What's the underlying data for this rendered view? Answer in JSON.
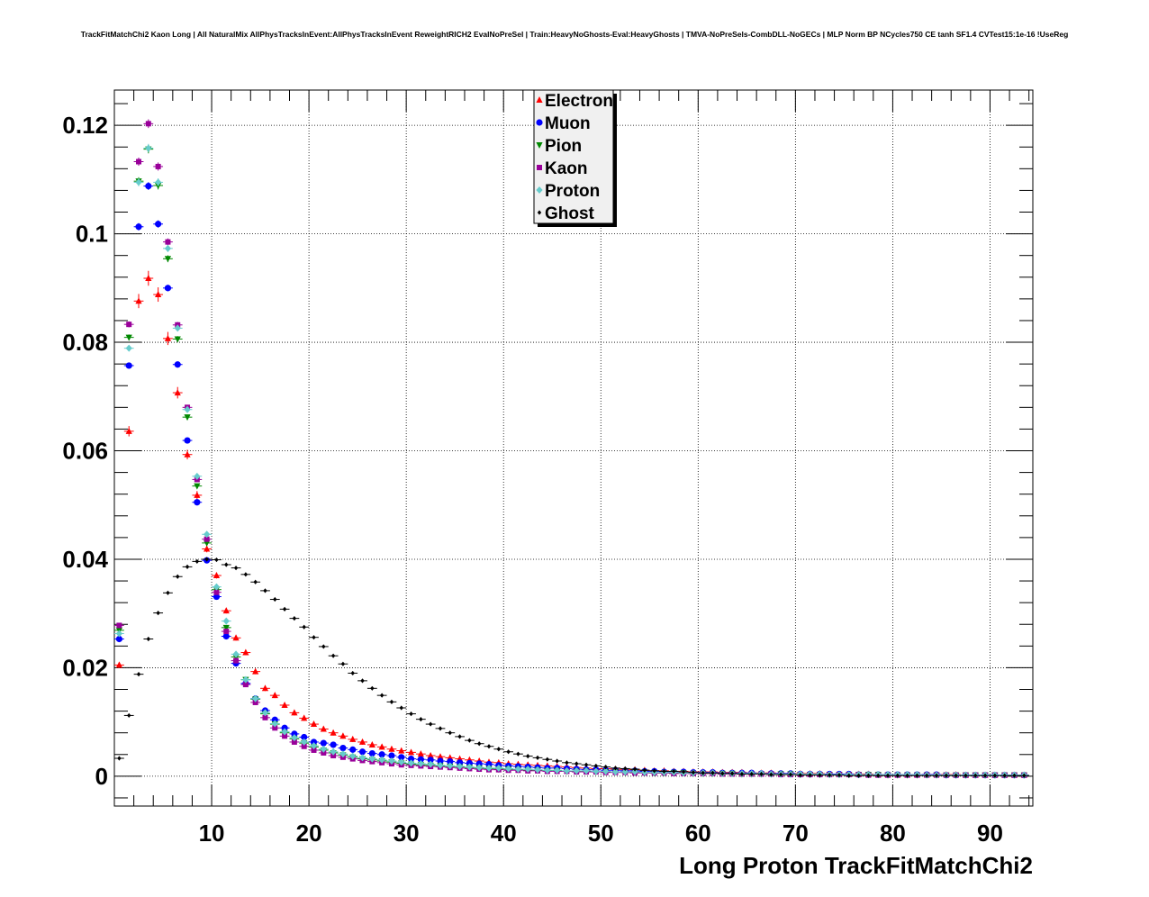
{
  "title": "TrackFitMatchChi2 Kaon Long | All NaturalMix AllPhysTracksInEvent:AllPhysTracksInEvent ReweightRICH2 EvalNoPreSel | Train:HeavyNoGhosts-Eval:HeavyGhosts | TMVA-NoPreSels-CombDLL-NoGECs | MLP Norm BP NCycles750 CE tanh SF1.4 CVTest15:1e-16 !UseReg",
  "chart_data": {
    "type": "scatter",
    "title": "TrackFitMatchChi2 Kaon Long | All NaturalMix AllPhysTracksInEvent:AllPhysTracksInEvent ReweightRICH2 EvalNoPreSel | Train:HeavyNoGhosts-Eval:HeavyGhosts | TMVA-NoPreSels-CombDLL-NoGECs | MLP Norm BP NCycles750 CE tanh SF1.4 CVTest15:1e-16 !UseReg",
    "xlabel": "Long Proton TrackFitMatchChi2",
    "ylabel": "",
    "xlim": [
      0,
      94.4
    ],
    "ylim": [
      -0.0055,
      0.1265
    ],
    "x_ticks": [
      10,
      20,
      30,
      40,
      50,
      60,
      70,
      80,
      90
    ],
    "x_tick_labels": [
      "10",
      "20",
      "30",
      "40",
      "50",
      "60",
      "70",
      "80",
      "90"
    ],
    "y_ticks": [
      0,
      0.02,
      0.04,
      0.06,
      0.08,
      0.1,
      0.12
    ],
    "y_tick_labels": [
      "0",
      "0.02",
      "0.04",
      "0.06",
      "0.08",
      "0.1",
      "0.12"
    ],
    "grid": true,
    "legend_position": "top-center",
    "bin_centers": [
      0.5,
      1.5,
      2.5,
      3.5,
      4.5,
      5.5,
      6.5,
      7.5,
      8.5,
      9.5,
      10.5,
      11.5,
      12.5,
      13.5,
      14.5,
      15.5,
      16.5,
      17.5,
      18.5,
      19.5,
      20.5,
      21.5,
      22.5,
      23.5,
      24.5,
      25.5,
      26.5,
      27.5,
      28.5,
      29.5,
      30.5,
      31.5,
      32.5,
      33.5,
      34.5,
      35.5,
      36.5,
      37.5,
      38.5,
      39.5,
      40.5,
      41.5,
      42.5,
      43.5,
      44.5,
      45.5,
      46.5,
      47.5,
      48.5,
      49.5,
      50.5,
      51.5,
      52.5,
      53.5,
      54.5,
      55.5,
      56.5,
      57.5,
      58.5,
      59.5,
      60.5,
      61.5,
      62.5,
      63.5,
      64.5,
      65.5,
      66.5,
      67.5,
      68.5,
      69.5,
      70.5,
      71.5,
      72.5,
      73.5,
      74.5,
      75.5,
      76.5,
      77.5,
      78.5,
      79.5,
      80.5,
      81.5,
      82.5,
      83.5,
      84.5,
      85.5,
      86.5,
      87.5,
      88.5,
      89.5,
      90.5,
      91.5,
      92.5,
      93.5
    ],
    "series": [
      {
        "name": "Electron",
        "marker": "triangle-up",
        "color": "#ff0000",
        "values": [
          0.0205,
          0.0636,
          0.0876,
          0.0918,
          0.0888,
          0.0807,
          0.0707,
          0.0593,
          0.0518,
          0.0419,
          0.037,
          0.0305,
          0.0255,
          0.0228,
          0.0193,
          0.0162,
          0.0149,
          0.0131,
          0.0117,
          0.0107,
          0.0096,
          0.0087,
          0.008,
          0.0074,
          0.0068,
          0.0063,
          0.0058,
          0.0054,
          0.005,
          0.0047,
          0.0044,
          0.0041,
          0.0038,
          0.0036,
          0.0034,
          0.0032,
          0.003,
          0.0028,
          0.0026,
          0.0025,
          0.0023,
          0.0022,
          0.0021,
          0.002,
          0.0019,
          0.0018,
          0.0017,
          0.0016,
          0.0015,
          0.0014,
          0.0014,
          0.0013,
          0.0012,
          0.0012,
          0.0011,
          0.001,
          0.001,
          0.0009,
          0.0009,
          0.0008,
          0.0008,
          0.0008,
          0.0007,
          0.0007,
          0.0007,
          0.0006,
          0.0006,
          0.0006,
          0.0005,
          0.0005,
          0.0005,
          0.0005,
          0.0005,
          0.0004,
          0.0004,
          0.0004,
          0.0004,
          0.0004,
          0.0003,
          0.0003,
          0.0003,
          0.0003,
          0.0003,
          0.0003,
          0.0003,
          0.0003,
          0.0003,
          0.0002,
          0.0002,
          0.0002,
          0.0002,
          0.0002,
          0.0002,
          0.0002
        ]
      },
      {
        "name": "Muon",
        "marker": "circle",
        "color": "#0000ff",
        "values": [
          0.0253,
          0.0757,
          0.1013,
          0.1088,
          0.1018,
          0.09,
          0.0759,
          0.0619,
          0.0505,
          0.0398,
          0.0331,
          0.0258,
          0.0208,
          0.0171,
          0.0143,
          0.0121,
          0.0104,
          0.0089,
          0.0078,
          0.0072,
          0.0063,
          0.0061,
          0.0058,
          0.0052,
          0.0049,
          0.0045,
          0.0042,
          0.004,
          0.0038,
          0.0035,
          0.0032,
          0.0031,
          0.003,
          0.0028,
          0.0027,
          0.0025,
          0.0024,
          0.0023,
          0.0022,
          0.002,
          0.0019,
          0.0018,
          0.0017,
          0.0016,
          0.0015,
          0.0015,
          0.0014,
          0.0013,
          0.0012,
          0.0012,
          0.0011,
          0.0011,
          0.001,
          0.001,
          0.0009,
          0.0009,
          0.0008,
          0.0008,
          0.0008,
          0.0007,
          0.0007,
          0.0007,
          0.0006,
          0.0006,
          0.0006,
          0.0006,
          0.0005,
          0.0005,
          0.0005,
          0.0005,
          0.0004,
          0.0004,
          0.0004,
          0.0004,
          0.0004,
          0.0004,
          0.0003,
          0.0003,
          0.0003,
          0.0003,
          0.0003,
          0.0003,
          0.0003,
          0.0003,
          0.0003,
          0.0002,
          0.0002,
          0.0002,
          0.0002,
          0.0002,
          0.0002,
          0.0002,
          0.0002,
          0.0002
        ]
      },
      {
        "name": "Pion",
        "marker": "triangle-down",
        "color": "#008800",
        "values": [
          0.0269,
          0.0809,
          0.1097,
          0.1156,
          0.1089,
          0.0954,
          0.0806,
          0.0662,
          0.0535,
          0.043,
          0.0344,
          0.0274,
          0.022,
          0.0178,
          0.0142,
          0.0115,
          0.0096,
          0.008,
          0.0069,
          0.0061,
          0.0054,
          0.0048,
          0.0043,
          0.0039,
          0.0035,
          0.0032,
          0.003,
          0.0028,
          0.0026,
          0.0024,
          0.0022,
          0.0021,
          0.002,
          0.0019,
          0.0018,
          0.0017,
          0.0016,
          0.0015,
          0.0014,
          0.0013,
          0.0013,
          0.0012,
          0.0011,
          0.0011,
          0.001,
          0.001,
          0.0009,
          0.0009,
          0.0009,
          0.0008,
          0.0008,
          0.0008,
          0.0007,
          0.0007,
          0.0007,
          0.0006,
          0.0006,
          0.0006,
          0.0006,
          0.0005,
          0.0005,
          0.0005,
          0.0005,
          0.0005,
          0.0004,
          0.0004,
          0.0004,
          0.0004,
          0.0004,
          0.0004,
          0.0003,
          0.0003,
          0.0003,
          0.0003,
          0.0003,
          0.0003,
          0.0003,
          0.0003,
          0.0003,
          0.0002,
          0.0002,
          0.0002,
          0.0002,
          0.0002,
          0.0002,
          0.0002,
          0.0002,
          0.0002,
          0.0002,
          0.0002,
          0.0002,
          0.0002,
          0.0002,
          0.0002
        ]
      },
      {
        "name": "Kaon",
        "marker": "square",
        "color": "#990099",
        "values": [
          0.0278,
          0.0833,
          0.1133,
          0.1203,
          0.1124,
          0.0985,
          0.0832,
          0.068,
          0.0547,
          0.0437,
          0.0339,
          0.0267,
          0.0213,
          0.0169,
          0.0136,
          0.0108,
          0.0089,
          0.0074,
          0.0063,
          0.0055,
          0.0048,
          0.0043,
          0.0038,
          0.0035,
          0.0032,
          0.0029,
          0.0027,
          0.0025,
          0.0023,
          0.0021,
          0.002,
          0.0019,
          0.0018,
          0.0017,
          0.0016,
          0.0015,
          0.0014,
          0.0013,
          0.0012,
          0.0012,
          0.0011,
          0.0011,
          0.001,
          0.001,
          0.0009,
          0.0009,
          0.0009,
          0.0008,
          0.0008,
          0.0008,
          0.0007,
          0.0007,
          0.0007,
          0.0006,
          0.0006,
          0.0006,
          0.0006,
          0.0005,
          0.0005,
          0.0005,
          0.0005,
          0.0005,
          0.0004,
          0.0004,
          0.0004,
          0.0004,
          0.0004,
          0.0004,
          0.0003,
          0.0003,
          0.0003,
          0.0003,
          0.0003,
          0.0003,
          0.0003,
          0.0003,
          0.0003,
          0.0002,
          0.0002,
          0.0002,
          0.0002,
          0.0002,
          0.0002,
          0.0002,
          0.0002,
          0.0002,
          0.0002,
          0.0002,
          0.0002,
          0.0002,
          0.0002,
          0.0002,
          0.0002,
          0.0002
        ]
      },
      {
        "name": "Proton",
        "marker": "diamond",
        "color": "#66cccc",
        "values": [
          0.0263,
          0.0789,
          0.1095,
          0.1158,
          0.1095,
          0.0973,
          0.0826,
          0.0676,
          0.0553,
          0.0446,
          0.0349,
          0.0286,
          0.0225,
          0.0178,
          0.0143,
          0.0117,
          0.0097,
          0.0082,
          0.0071,
          0.0063,
          0.0056,
          0.005,
          0.0045,
          0.0041,
          0.0037,
          0.0034,
          0.0032,
          0.003,
          0.0028,
          0.0026,
          0.0024,
          0.0023,
          0.0022,
          0.002,
          0.0019,
          0.0018,
          0.0017,
          0.0016,
          0.0015,
          0.0015,
          0.0014,
          0.0013,
          0.0013,
          0.0012,
          0.0011,
          0.0011,
          0.001,
          0.001,
          0.001,
          0.0009,
          0.0009,
          0.0008,
          0.0008,
          0.0008,
          0.0007,
          0.0007,
          0.0007,
          0.0007,
          0.0006,
          0.0006,
          0.0006,
          0.0006,
          0.0005,
          0.0005,
          0.0005,
          0.0005,
          0.0005,
          0.0004,
          0.0004,
          0.0004,
          0.0004,
          0.0004,
          0.0004,
          0.0003,
          0.0003,
          0.0003,
          0.0003,
          0.0003,
          0.0003,
          0.0003,
          0.0003,
          0.0003,
          0.0003,
          0.0002,
          0.0002,
          0.0002,
          0.0002,
          0.0002,
          0.0002,
          0.0002,
          0.0002,
          0.0002,
          0.0002,
          0.0002
        ]
      },
      {
        "name": "Ghost",
        "marker": "small-diamond",
        "color": "#000000",
        "values": [
          0.0033,
          0.0112,
          0.0188,
          0.0253,
          0.0301,
          0.0338,
          0.0368,
          0.0386,
          0.0396,
          0.04,
          0.0399,
          0.039,
          0.0384,
          0.0372,
          0.0358,
          0.0342,
          0.0326,
          0.0308,
          0.0291,
          0.0275,
          0.0256,
          0.0239,
          0.0222,
          0.0207,
          0.019,
          0.0176,
          0.0162,
          0.0149,
          0.0137,
          0.0126,
          0.0115,
          0.0105,
          0.0096,
          0.0088,
          0.008,
          0.0073,
          0.0066,
          0.006,
          0.0055,
          0.005,
          0.0045,
          0.0041,
          0.0037,
          0.0034,
          0.0031,
          0.0028,
          0.0025,
          0.0023,
          0.0021,
          0.0019,
          0.0017,
          0.0015,
          0.0014,
          0.0013,
          0.0011,
          0.001,
          0.0009,
          0.0009,
          0.0008,
          0.0007,
          0.0006,
          0.0006,
          0.0005,
          0.0005,
          0.0004,
          0.0004,
          0.0004,
          0.0003,
          0.0003,
          0.0003,
          0.0002,
          0.0002,
          0.0002,
          0.0002,
          0.0002,
          0.0001,
          0.0001,
          0.0001,
          0.0001,
          0.0001,
          0.0001,
          0.0001,
          0.0001,
          0.0001,
          0.0001,
          0.0001,
          0.0001,
          0.0001,
          0.0001,
          0.0001,
          0.0001,
          0.0001,
          0.0001,
          0.0001
        ]
      }
    ]
  }
}
